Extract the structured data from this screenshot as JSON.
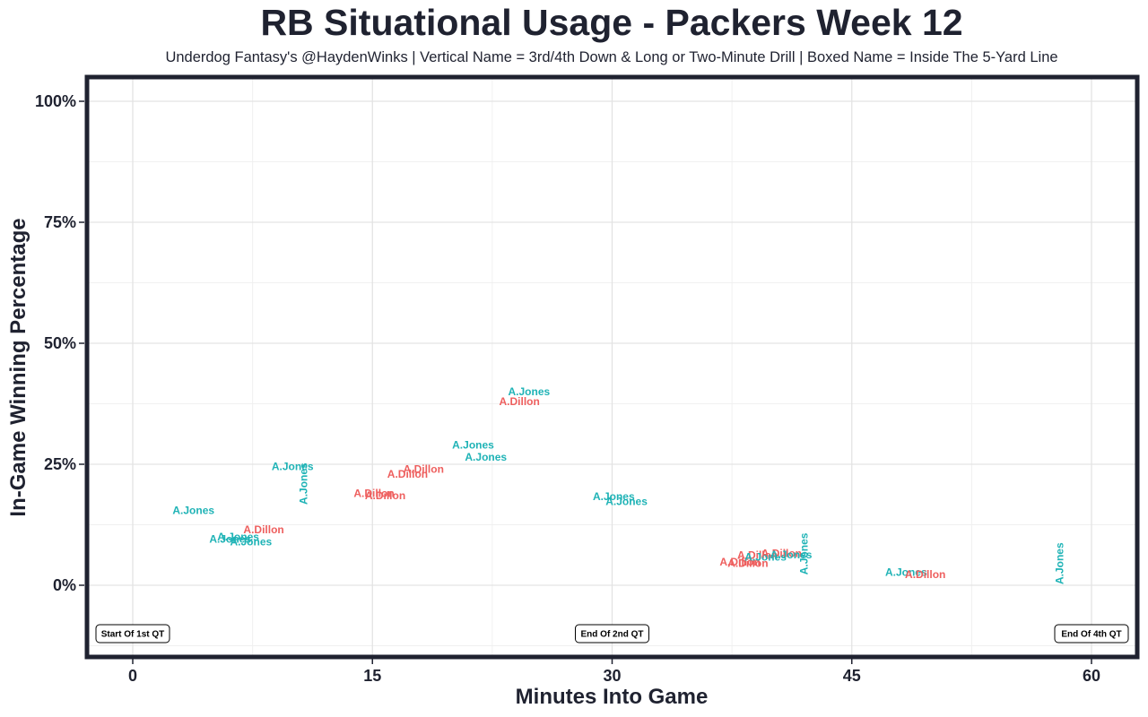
{
  "chart_data": {
    "type": "scatter",
    "title": "RB Situational Usage - Packers Week 12",
    "subtitle": "Underdog Fantasy's @HaydenWinks | Vertical Name = 3rd/4th Down & Long or Two-Minute Drill | Boxed Name = Inside The 5-Yard Line",
    "xlabel": "Minutes Into Game",
    "ylabel": "In-Game Winning Percentage",
    "xlim": [
      -3,
      63
    ],
    "ylim": [
      -0.15,
      1.05
    ],
    "x_ticks": [
      {
        "value": 0,
        "label": "0"
      },
      {
        "value": 15,
        "label": "15"
      },
      {
        "value": 30,
        "label": "30"
      },
      {
        "value": 45,
        "label": "45"
      },
      {
        "value": 60,
        "label": "60"
      }
    ],
    "y_ticks": [
      {
        "value": 0,
        "label": "0%"
      },
      {
        "value": 0.25,
        "label": "25%"
      },
      {
        "value": 0.5,
        "label": "50%"
      },
      {
        "value": 0.75,
        "label": "75%"
      },
      {
        "value": 1,
        "label": "100%"
      }
    ],
    "grid": true,
    "colors": {
      "A.Jones": "#1fb3b6",
      "A.Dillon": "#ee5f5e"
    },
    "points": [
      {
        "x": 3.8,
        "y": 0.155,
        "player": "A.Jones",
        "vertical": false
      },
      {
        "x": 6.1,
        "y": 0.095,
        "player": "A.Jones",
        "vertical": false
      },
      {
        "x": 6.6,
        "y": 0.1,
        "player": "A.Jones",
        "vertical": false
      },
      {
        "x": 7.4,
        "y": 0.09,
        "player": "A.Jones",
        "vertical": false
      },
      {
        "x": 8.2,
        "y": 0.115,
        "player": "A.Dillon",
        "vertical": false
      },
      {
        "x": 10.0,
        "y": 0.245,
        "player": "A.Jones",
        "vertical": false
      },
      {
        "x": 10.7,
        "y": 0.21,
        "player": "A.Jones",
        "vertical": true
      },
      {
        "x": 15.1,
        "y": 0.19,
        "player": "A.Dillon",
        "vertical": false
      },
      {
        "x": 15.8,
        "y": 0.185,
        "player": "A.Dillon",
        "vertical": false
      },
      {
        "x": 17.2,
        "y": 0.23,
        "player": "A.Dillon",
        "vertical": false
      },
      {
        "x": 18.2,
        "y": 0.24,
        "player": "A.Dillon",
        "vertical": false
      },
      {
        "x": 21.3,
        "y": 0.29,
        "player": "A.Jones",
        "vertical": false
      },
      {
        "x": 22.1,
        "y": 0.265,
        "player": "A.Jones",
        "vertical": false
      },
      {
        "x": 24.2,
        "y": 0.38,
        "player": "A.Dillon",
        "vertical": false
      },
      {
        "x": 24.8,
        "y": 0.4,
        "player": "A.Jones",
        "vertical": false
      },
      {
        "x": 30.1,
        "y": 0.183,
        "player": "A.Jones",
        "vertical": false
      },
      {
        "x": 30.9,
        "y": 0.173,
        "player": "A.Jones",
        "vertical": false
      },
      {
        "x": 38.0,
        "y": 0.048,
        "player": "A.Dillon",
        "vertical": false
      },
      {
        "x": 38.5,
        "y": 0.045,
        "player": "A.Dillon",
        "vertical": false
      },
      {
        "x": 39.1,
        "y": 0.062,
        "player": "A.Dillon",
        "vertical": false
      },
      {
        "x": 39.6,
        "y": 0.058,
        "player": "A.Jones",
        "vertical": false
      },
      {
        "x": 40.6,
        "y": 0.066,
        "player": "A.Dillon",
        "vertical": false
      },
      {
        "x": 41.2,
        "y": 0.063,
        "player": "A.Jones",
        "vertical": false
      },
      {
        "x": 42.0,
        "y": 0.065,
        "player": "A.Jones",
        "vertical": true
      },
      {
        "x": 48.4,
        "y": 0.027,
        "player": "A.Jones",
        "vertical": false
      },
      {
        "x": 49.6,
        "y": 0.022,
        "player": "A.Dillon",
        "vertical": false
      },
      {
        "x": 58.0,
        "y": 0.045,
        "player": "A.Jones",
        "vertical": true
      }
    ],
    "quarter_markers": [
      {
        "x": 0,
        "label": "Start Of 1st QT"
      },
      {
        "x": 30,
        "label": "End Of 2nd QT"
      },
      {
        "x": 60,
        "label": "End Of 4th QT"
      }
    ]
  }
}
